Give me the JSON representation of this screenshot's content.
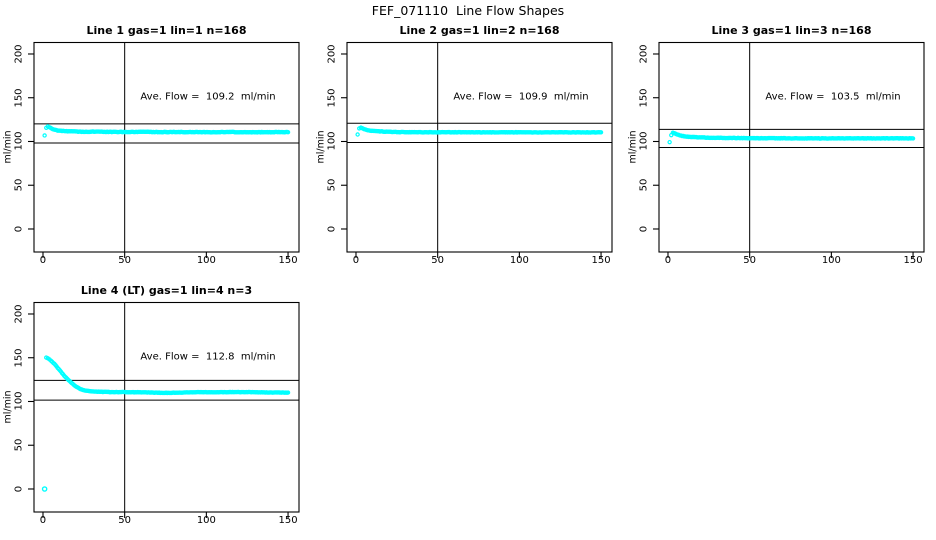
{
  "figure": {
    "title": "FEF_071110  Line Flow Shapes"
  },
  "colors": {
    "data_points": "#00FFFF",
    "axis": "#000000",
    "background": "#FFFFFF"
  },
  "chart_data": [
    {
      "type": "scatter",
      "title": "Line 1 gas=1 lin=1 n=168",
      "annotation": "Ave. Flow =  109.2  ml/min",
      "ave_flow_ml_min": 109.2,
      "n": 168,
      "xlabel": "",
      "ylabel": "ml/min",
      "x_ticks": [
        0,
        50,
        100,
        150
      ],
      "y_ticks": [
        0,
        50,
        100,
        150,
        200
      ],
      "xlim": [
        0,
        150
      ],
      "ylim": [
        0,
        200
      ],
      "vline_x": 50,
      "ref_lines_y": [
        120.1,
        98.3
      ],
      "marker": "open-circle",
      "marker_color": "#00FFFF",
      "jitter": 0.55,
      "series_keypoints": [
        [
          1,
          107
        ],
        [
          2,
          115.5
        ],
        [
          3,
          117
        ],
        [
          4,
          116
        ],
        [
          6,
          114
        ],
        [
          9,
          112.5
        ],
        [
          13,
          112
        ],
        [
          18,
          111.5
        ],
        [
          25,
          111
        ],
        [
          32,
          111.3
        ],
        [
          40,
          111
        ],
        [
          50,
          110.8
        ],
        [
          62,
          111
        ],
        [
          75,
          110.7
        ],
        [
          88,
          110.8
        ],
        [
          100,
          110.6
        ],
        [
          112,
          110.8
        ],
        [
          125,
          110.6
        ],
        [
          138,
          110.7
        ],
        [
          150,
          110.6
        ]
      ],
      "outlier_points": []
    },
    {
      "type": "scatter",
      "title": "Line 2 gas=1 lin=2 n=168",
      "annotation": "Ave. Flow =  109.9  ml/min",
      "ave_flow_ml_min": 109.9,
      "n": 168,
      "xlabel": "",
      "ylabel": "ml/min",
      "x_ticks": [
        0,
        50,
        100,
        150
      ],
      "y_ticks": [
        0,
        50,
        100,
        150,
        200
      ],
      "xlim": [
        0,
        150
      ],
      "ylim": [
        0,
        200
      ],
      "vline_x": 50,
      "ref_lines_y": [
        120.9,
        98.9
      ],
      "marker": "open-circle",
      "marker_color": "#00FFFF",
      "jitter": 0.45,
      "series_keypoints": [
        [
          1,
          108
        ],
        [
          2,
          115
        ],
        [
          3,
          116
        ],
        [
          5,
          114
        ],
        [
          8,
          112.5
        ],
        [
          12,
          111.8
        ],
        [
          18,
          111.2
        ],
        [
          25,
          110.8
        ],
        [
          35,
          110.6
        ],
        [
          50,
          110.5
        ],
        [
          65,
          110.6
        ],
        [
          80,
          110.4
        ],
        [
          95,
          110.5
        ],
        [
          110,
          110.4
        ],
        [
          125,
          110.5
        ],
        [
          140,
          110.4
        ],
        [
          150,
          110.5
        ]
      ],
      "outlier_points": []
    },
    {
      "type": "scatter",
      "title": "Line 3 gas=1 lin=3 n=168",
      "annotation": "Ave. Flow =  103.5  ml/min",
      "ave_flow_ml_min": 103.5,
      "n": 168,
      "xlabel": "",
      "ylabel": "ml/min",
      "x_ticks": [
        0,
        50,
        100,
        150
      ],
      "y_ticks": [
        0,
        50,
        100,
        150,
        200
      ],
      "xlim": [
        0,
        150
      ],
      "ylim": [
        0,
        200
      ],
      "vline_x": 50,
      "ref_lines_y": [
        113.9,
        93.2
      ],
      "marker": "open-circle",
      "marker_color": "#00FFFF",
      "jitter": 0.5,
      "series_keypoints": [
        [
          1,
          99
        ],
        [
          2,
          107.5
        ],
        [
          3,
          110
        ],
        [
          5,
          108.5
        ],
        [
          8,
          106.5
        ],
        [
          12,
          105.5
        ],
        [
          18,
          104.8
        ],
        [
          25,
          104.3
        ],
        [
          35,
          104
        ],
        [
          50,
          103.8
        ],
        [
          65,
          103.7
        ],
        [
          80,
          103.6
        ],
        [
          95,
          103.5
        ],
        [
          110,
          103.6
        ],
        [
          125,
          103.5
        ],
        [
          140,
          103.6
        ],
        [
          150,
          103.5
        ]
      ],
      "outlier_points": []
    },
    {
      "type": "scatter",
      "title": "Line 4 (LT) gas=1 lin=4 n=3",
      "annotation": "Ave. Flow =  112.8  ml/min",
      "ave_flow_ml_min": 112.8,
      "n": 3,
      "xlabel": "",
      "ylabel": "ml/min",
      "x_ticks": [
        0,
        50,
        100,
        150
      ],
      "y_ticks": [
        0,
        50,
        100,
        150,
        200
      ],
      "xlim": [
        0,
        150
      ],
      "ylim": [
        0,
        200
      ],
      "vline_x": 50,
      "ref_lines_y": [
        124.1,
        101.5
      ],
      "marker": "open-circle",
      "marker_color": "#00FFFF",
      "jitter": 0.4,
      "series_keypoints": [
        [
          2,
          150
        ],
        [
          3,
          149.5
        ],
        [
          4,
          148
        ],
        [
          5,
          146.5
        ],
        [
          7,
          143
        ],
        [
          9,
          138.5
        ],
        [
          11,
          134
        ],
        [
          13,
          129.5
        ],
        [
          15,
          125.5
        ],
        [
          17,
          122
        ],
        [
          19,
          118.8
        ],
        [
          21,
          116.2
        ],
        [
          23,
          114.2
        ],
        [
          25,
          112.8
        ],
        [
          28,
          111.8
        ],
        [
          32,
          111.2
        ],
        [
          36,
          111
        ],
        [
          42,
          110.8
        ],
        [
          50,
          110.7
        ],
        [
          58,
          110.5
        ],
        [
          66,
          110.2
        ],
        [
          74,
          109.8
        ],
        [
          80,
          110
        ],
        [
          88,
          110.4
        ],
        [
          96,
          110.6
        ],
        [
          106,
          110.6
        ],
        [
          116,
          110.7
        ],
        [
          126,
          110.8
        ],
        [
          136,
          110.4
        ],
        [
          144,
          110.2
        ],
        [
          150,
          110.2
        ]
      ],
      "outlier_points": [
        [
          1,
          0
        ]
      ]
    }
  ]
}
